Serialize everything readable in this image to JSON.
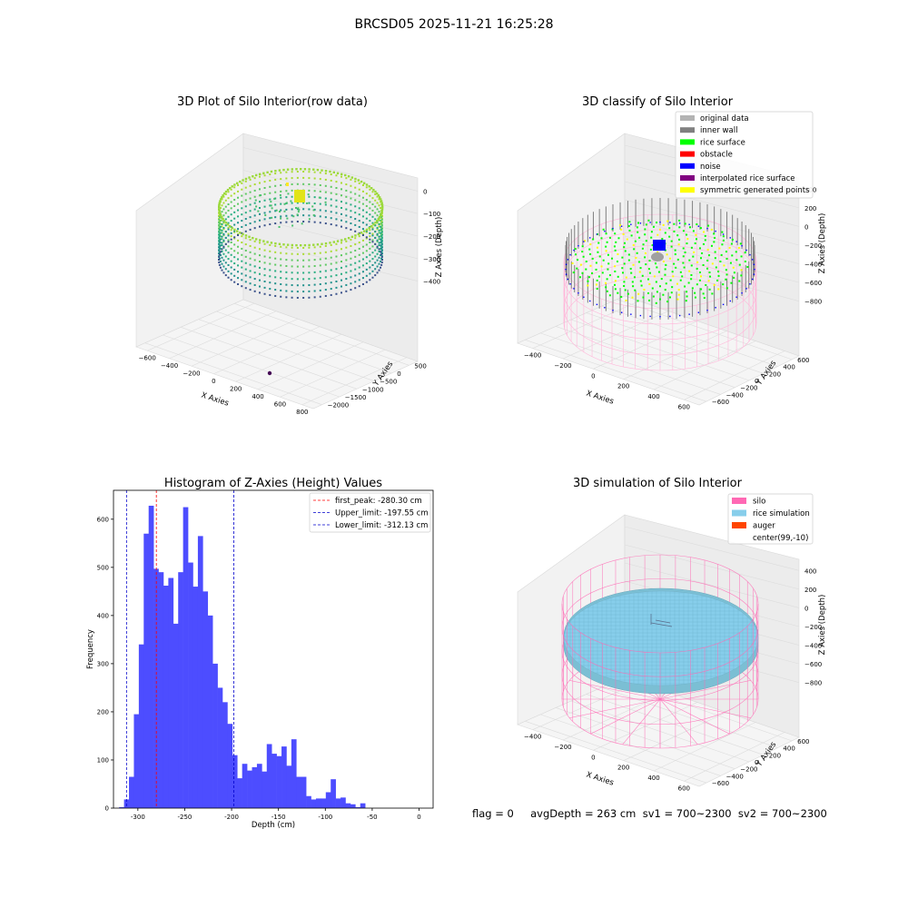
{
  "figure": {
    "suptitle": "BRCSD05 2025-11-21 16:25:28",
    "status_line": "flag = 0     avgDepth = 263 cm  sv1 = 700~2300  sv2 = 700~2300"
  },
  "chart_data": [
    {
      "type": "scatter",
      "projection": "3d",
      "title": "3D Plot of Silo Interior(row data)",
      "xlabel": "X Axies",
      "ylabel": "Y Axies",
      "zlabel": "Z Axies (Depth)",
      "x_ticks": [
        "−600",
        "−400",
        "−200",
        "0",
        "200",
        "400",
        "600",
        "800"
      ],
      "y_ticks": [
        "500",
        "0",
        "−500",
        "−1000",
        "−1500",
        "−2000"
      ],
      "z_ticks": [
        "0",
        "−100",
        "−200",
        "−300",
        "−400"
      ],
      "colormap": "viridis",
      "description": "ring-shaped point cloud of silo interior, depth colored",
      "outlier_point": "single dark purple point near x 400, y -1900"
    },
    {
      "type": "scatter",
      "projection": "3d",
      "title": "3D classify of Silo Interior",
      "xlabel": "X Axies",
      "ylabel": "Y Axies",
      "zlabel": "Z Axies (Depth)",
      "x_ticks": [
        "−400",
        "−200",
        "0",
        "200",
        "400",
        "600"
      ],
      "y_ticks": [
        "600",
        "400",
        "200",
        "0",
        "−200",
        "−400",
        "−600"
      ],
      "z_ticks": [
        "400",
        "200",
        "0",
        "−200",
        "−400",
        "−600",
        "−800"
      ],
      "legend": [
        {
          "label": "original data",
          "color": "#b3b3b3"
        },
        {
          "label": "inner wall",
          "color": "#808080"
        },
        {
          "label": "rice surface",
          "color": "#00ff00"
        },
        {
          "label": "obstacle",
          "color": "#ff0000"
        },
        {
          "label": "noise",
          "color": "#0000ff"
        },
        {
          "label": "interpolated rice surface",
          "color": "#800080"
        },
        {
          "label": "symmetric generated points",
          "color": "#ffff00"
        }
      ],
      "legend_position": "top-right",
      "silo_wireframe_color": "#ffb6d9"
    },
    {
      "type": "bar",
      "title": "Histogram of Z-Axies (Height) Values",
      "xlabel": "Depth (cm)",
      "ylabel": "Frequency",
      "xlim": [
        -326,
        15
      ],
      "ylim": [
        0,
        660
      ],
      "x_ticks": [
        -300,
        -250,
        -200,
        -150,
        -100,
        -50,
        0
      ],
      "y_ticks": [
        0,
        100,
        200,
        300,
        400,
        500,
        600
      ],
      "bar_color": "#4d4dff",
      "bin_width": 5.25,
      "bin_start": -320,
      "values": [
        2,
        18,
        65,
        195,
        340,
        570,
        628,
        497,
        490,
        462,
        478,
        383,
        490,
        625,
        510,
        460,
        565,
        450,
        400,
        300,
        250,
        220,
        175,
        110,
        62,
        92,
        78,
        85,
        92,
        76,
        133,
        113,
        108,
        128,
        88,
        143,
        65,
        65,
        25,
        18,
        20,
        20,
        33,
        60,
        20,
        22,
        10,
        8,
        2,
        10
      ],
      "vlines": [
        {
          "x": -280.3,
          "color": "#ff0000",
          "label": "first_peak: -280.30 cm"
        },
        {
          "x": -197.55,
          "color": "#0000cc",
          "label": "Upper_limit: -197.55 cm"
        },
        {
          "x": -312.13,
          "color": "#0000cc",
          "label": "Lower_limit: -312.13 cm"
        }
      ],
      "legend_position": "top-right"
    },
    {
      "type": "scatter",
      "projection": "3d",
      "title": "3D simulation of Silo Interior",
      "xlabel": "X Axies",
      "ylabel": "Y Axies",
      "zlabel": "Z Axies (Depth)",
      "x_ticks": [
        "−400",
        "−200",
        "0",
        "200",
        "400",
        "600"
      ],
      "y_ticks": [
        "600",
        "400",
        "200",
        "0",
        "−200",
        "−400",
        "−600"
      ],
      "z_ticks": [
        "400",
        "200",
        "0",
        "−200",
        "−400",
        "−600",
        "−800"
      ],
      "legend": [
        {
          "label": "silo",
          "color": "#ff69b4"
        },
        {
          "label": "rice simulation",
          "color": "#87ceeb"
        },
        {
          "label": "auger",
          "color": "#ff4500"
        },
        {
          "label": "center(99,-10)",
          "color": ""
        }
      ],
      "legend_position": "top-right"
    }
  ]
}
